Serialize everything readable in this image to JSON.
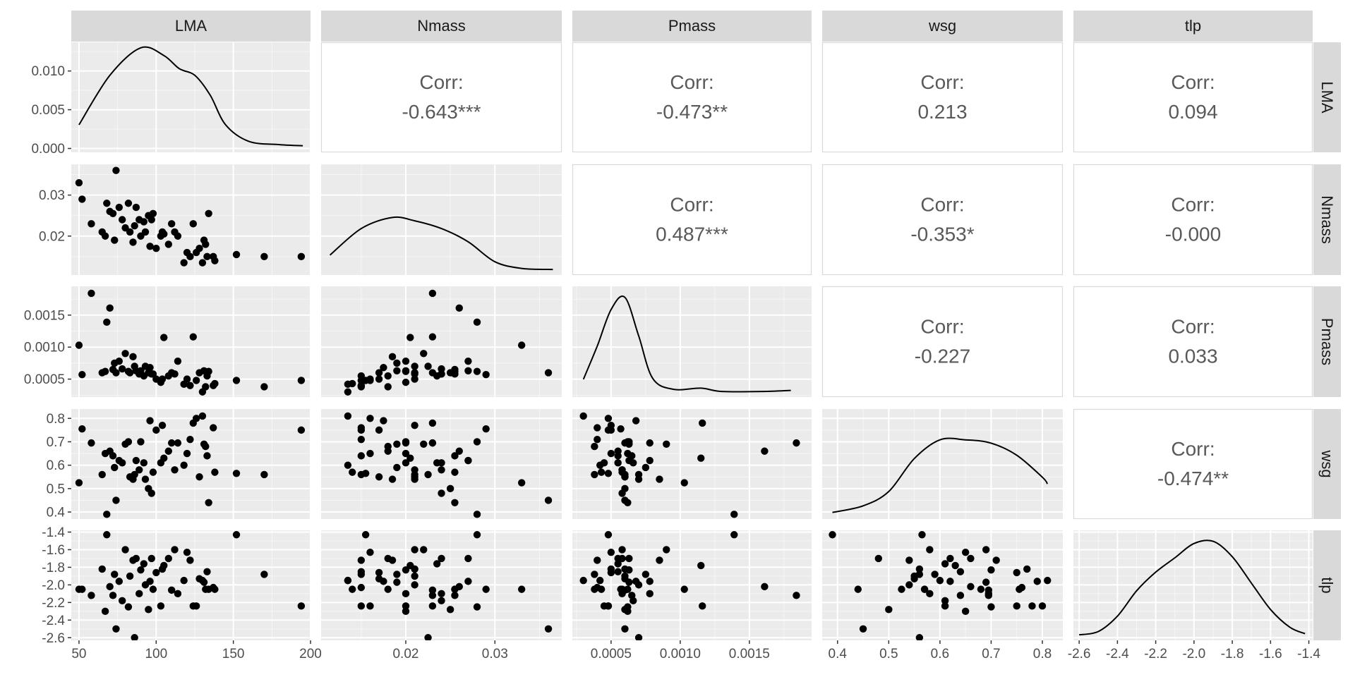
{
  "colors": {
    "panel_bg": "#EBEBEB",
    "grid_major": "#FFFFFF",
    "strip_bg": "#D9D9D9",
    "corr_panel_border": "#D9D9D9",
    "points": "#000000",
    "text": "#1A1A1A",
    "tick_text": "#4D4D4D",
    "corr_text": "#595959"
  },
  "chart_data": {
    "type": "scatter-matrix",
    "variables": [
      "LMA",
      "Nmass",
      "Pmass",
      "wsg",
      "tlp"
    ],
    "corr_label": "Corr:",
    "axes": {
      "LMA": {
        "range": [
          45,
          200
        ],
        "ticks": [
          50,
          100,
          150,
          200
        ],
        "tick_labels": [
          "50",
          "100",
          "150",
          "200"
        ]
      },
      "Nmass": {
        "range": [
          0.0105,
          0.0375
        ],
        "ticks": [
          0.02,
          0.03
        ],
        "tick_labels": [
          "0.02",
          "0.03"
        ]
      },
      "Pmass": {
        "range": [
          0.00022,
          0.00195
        ],
        "ticks": [
          0.0005,
          0.001,
          0.0015
        ],
        "tick_labels": [
          "0.0005",
          "0.0010",
          "0.0015"
        ]
      },
      "wsg": {
        "range": [
          0.37,
          0.84
        ],
        "ticks": [
          0.4,
          0.5,
          0.6,
          0.7,
          0.8
        ],
        "tick_labels": [
          "0.4",
          "0.5",
          "0.6",
          "0.7",
          "0.8"
        ]
      },
      "tlp": {
        "range": [
          -2.63,
          -1.38
        ],
        "ticks": [
          -2.6,
          -2.4,
          -2.2,
          -2.0,
          -1.8,
          -1.6,
          -1.4
        ],
        "tick_labels": [
          "-2.6",
          "-2.4",
          "-2.2",
          "-2.0",
          "-1.8",
          "-1.6",
          "-1.4"
        ]
      }
    },
    "left_axis_labels": {
      "LMA": {
        "ticks": [
          0.0,
          0.005,
          0.01
        ],
        "tick_labels": [
          "0.000",
          "0.005",
          "0.010"
        ],
        "ylim": [
          -0.0005,
          0.0137
        ]
      },
      "Nmass": {
        "ticks": [
          0.02,
          0.03
        ],
        "tick_labels": [
          "0.02",
          "0.03"
        ]
      },
      "Pmass": {
        "ticks": [
          0.0005,
          0.001,
          0.0015
        ],
        "tick_labels": [
          "0.0005",
          "0.0010",
          "0.0015"
        ]
      },
      "wsg": {
        "ticks": [
          0.4,
          0.5,
          0.6,
          0.7,
          0.8
        ],
        "tick_labels": [
          "0.4",
          "0.5",
          "0.6",
          "0.7",
          "0.8"
        ]
      },
      "tlp": {
        "ticks": [
          -2.6,
          -2.4,
          -2.2,
          -2.0,
          -1.8,
          -1.6,
          -1.4
        ],
        "tick_labels": [
          "-2.6",
          "-2.4",
          "-2.2",
          "-2.0",
          "-1.8",
          "-1.6",
          "-1.4"
        ]
      }
    },
    "correlations": [
      {
        "row": "LMA",
        "col": "Nmass",
        "value": "-0.643***"
      },
      {
        "row": "LMA",
        "col": "Pmass",
        "value": "-0.473**"
      },
      {
        "row": "LMA",
        "col": "wsg",
        "value": "0.213"
      },
      {
        "row": "LMA",
        "col": "tlp",
        "value": "0.094"
      },
      {
        "row": "Nmass",
        "col": "Pmass",
        "value": "0.487***"
      },
      {
        "row": "Nmass",
        "col": "wsg",
        "value": "-0.353*"
      },
      {
        "row": "Nmass",
        "col": "tlp",
        "value": "-0.000"
      },
      {
        "row": "Pmass",
        "col": "wsg",
        "value": "-0.227"
      },
      {
        "row": "Pmass",
        "col": "tlp",
        "value": "0.033"
      },
      {
        "row": "wsg",
        "col": "tlp",
        "value": "-0.474**"
      }
    ],
    "density_rel": {
      "LMA": [
        [
          50,
          0.25
        ],
        [
          70,
          0.7
        ],
        [
          90,
          0.95
        ],
        [
          105,
          0.88
        ],
        [
          115,
          0.76
        ],
        [
          125,
          0.7
        ],
        [
          135,
          0.52
        ],
        [
          145,
          0.25
        ],
        [
          160,
          0.1
        ],
        [
          180,
          0.07
        ],
        [
          195,
          0.06
        ]
      ],
      "Nmass": [
        [
          0.0115,
          0.18
        ],
        [
          0.015,
          0.42
        ],
        [
          0.0185,
          0.52
        ],
        [
          0.021,
          0.49
        ],
        [
          0.024,
          0.42
        ],
        [
          0.027,
          0.3
        ],
        [
          0.03,
          0.12
        ],
        [
          0.033,
          0.06
        ],
        [
          0.0365,
          0.05
        ]
      ],
      "Pmass": [
        [
          0.0003,
          0.16
        ],
        [
          0.0004,
          0.46
        ],
        [
          0.0005,
          0.79
        ],
        [
          0.0006,
          0.9
        ],
        [
          0.0007,
          0.55
        ],
        [
          0.0008,
          0.17
        ],
        [
          0.00095,
          0.07
        ],
        [
          0.00115,
          0.08
        ],
        [
          0.0013,
          0.05
        ],
        [
          0.0016,
          0.05
        ],
        [
          0.0018,
          0.06
        ]
      ],
      "wsg": [
        [
          0.39,
          0.06
        ],
        [
          0.45,
          0.12
        ],
        [
          0.5,
          0.25
        ],
        [
          0.55,
          0.55
        ],
        [
          0.6,
          0.72
        ],
        [
          0.65,
          0.72
        ],
        [
          0.7,
          0.69
        ],
        [
          0.75,
          0.58
        ],
        [
          0.8,
          0.38
        ],
        [
          0.81,
          0.32
        ]
      ],
      "tlp": [
        [
          -2.6,
          0.05
        ],
        [
          -2.5,
          0.08
        ],
        [
          -2.4,
          0.22
        ],
        [
          -2.3,
          0.45
        ],
        [
          -2.2,
          0.62
        ],
        [
          -2.1,
          0.75
        ],
        [
          -2.0,
          0.88
        ],
        [
          -1.9,
          0.9
        ],
        [
          -1.8,
          0.76
        ],
        [
          -1.7,
          0.52
        ],
        [
          -1.6,
          0.28
        ],
        [
          -1.5,
          0.12
        ],
        [
          -1.42,
          0.06
        ]
      ]
    },
    "points": [
      [
        50,
        0.033,
        0.00103,
        0.525,
        -2.05
      ],
      [
        52,
        0.029,
        0.00057,
        0.755,
        -2.05
      ],
      [
        58,
        0.023,
        0.00184,
        0.695,
        -2.12
      ],
      [
        65,
        0.021,
        0.0006,
        0.56,
        -1.82
      ],
      [
        67,
        0.02,
        0.00062,
        0.65,
        -2.3
      ],
      [
        68,
        0.028,
        0.00139,
        0.39,
        -1.43
      ],
      [
        70,
        0.026,
        0.00161,
        0.66,
        -2.02
      ],
      [
        72,
        0.0255,
        0.00065,
        0.64,
        -2.12
      ],
      [
        73,
        0.019,
        0.00075,
        0.59,
        -1.88
      ],
      [
        74,
        0.036,
        0.0006,
        0.45,
        -2.5
      ],
      [
        76,
        0.027,
        0.00078,
        0.62,
        -1.96
      ],
      [
        78,
        0.024,
        0.00066,
        0.61,
        -2.18
      ],
      [
        80,
        0.022,
        0.0009,
        0.69,
        -1.6
      ],
      [
        82,
        0.028,
        0.00062,
        0.7,
        -2.25
      ],
      [
        83,
        0.021,
        0.0006,
        0.55,
        -1.9
      ],
      [
        85,
        0.0185,
        0.00085,
        0.54,
        -1.72
      ],
      [
        86,
        0.0225,
        0.0007,
        0.56,
        -2.6
      ],
      [
        87,
        0.027,
        0.00063,
        0.62,
        -1.7
      ],
      [
        89,
        0.024,
        0.00058,
        0.58,
        -2.1
      ],
      [
        90,
        0.02,
        0.00063,
        0.7,
        -1.83
      ],
      [
        92,
        0.0235,
        0.00055,
        0.61,
        -1.76
      ],
      [
        93,
        0.021,
        0.0007,
        0.54,
        -2.0
      ],
      [
        95,
        0.025,
        0.0006,
        0.5,
        -2.28
      ],
      [
        96,
        0.0175,
        0.00068,
        0.79,
        -1.96
      ],
      [
        97,
        0.024,
        0.00058,
        0.48,
        -1.7
      ],
      [
        98,
        0.0255,
        0.00058,
        0.57,
        -2.05
      ],
      [
        100,
        0.017,
        0.0005,
        0.75,
        -1.86
      ],
      [
        103,
        0.02,
        0.00045,
        0.61,
        -2.24
      ],
      [
        104,
        0.021,
        0.0005,
        0.77,
        -1.82
      ],
      [
        105,
        0.0205,
        0.00115,
        0.63,
        -1.78
      ],
      [
        108,
        0.018,
        0.00055,
        0.66,
        -1.7
      ],
      [
        110,
        0.023,
        0.0006,
        0.695,
        -2.06
      ],
      [
        112,
        0.021,
        0.00058,
        0.58,
        -1.6
      ],
      [
        114,
        0.02,
        0.00078,
        0.695,
        -2.1
      ],
      [
        118,
        0.0135,
        0.00042,
        0.6,
        -1.95
      ],
      [
        120,
        0.016,
        0.0005,
        0.65,
        -1.63
      ],
      [
        122,
        0.015,
        0.0004,
        0.71,
        -1.72
      ],
      [
        124,
        0.023,
        0.00116,
        0.78,
        -2.24
      ],
      [
        126,
        0.016,
        0.00048,
        0.8,
        -2.24
      ],
      [
        128,
        0.017,
        0.0006,
        0.55,
        -1.93
      ],
      [
        130,
        0.0135,
        0.0003,
        0.81,
        -1.95
      ],
      [
        131,
        0.019,
        0.00063,
        0.69,
        -1.97
      ],
      [
        132,
        0.018,
        0.00038,
        0.68,
        -2.05
      ],
      [
        133,
        0.015,
        0.00055,
        0.64,
        -1.85
      ],
      [
        134,
        0.0255,
        0.00062,
        0.44,
        -2.05
      ],
      [
        137,
        0.015,
        0.0004,
        0.76,
        -2.03
      ],
      [
        138,
        0.014,
        0.00043,
        0.57,
        -2.05
      ],
      [
        152,
        0.0155,
        0.00048,
        0.565,
        -1.43
      ],
      [
        170,
        0.015,
        0.00038,
        0.56,
        -1.88
      ],
      [
        194,
        0.015,
        0.00048,
        0.75,
        -2.24
      ]
    ]
  }
}
